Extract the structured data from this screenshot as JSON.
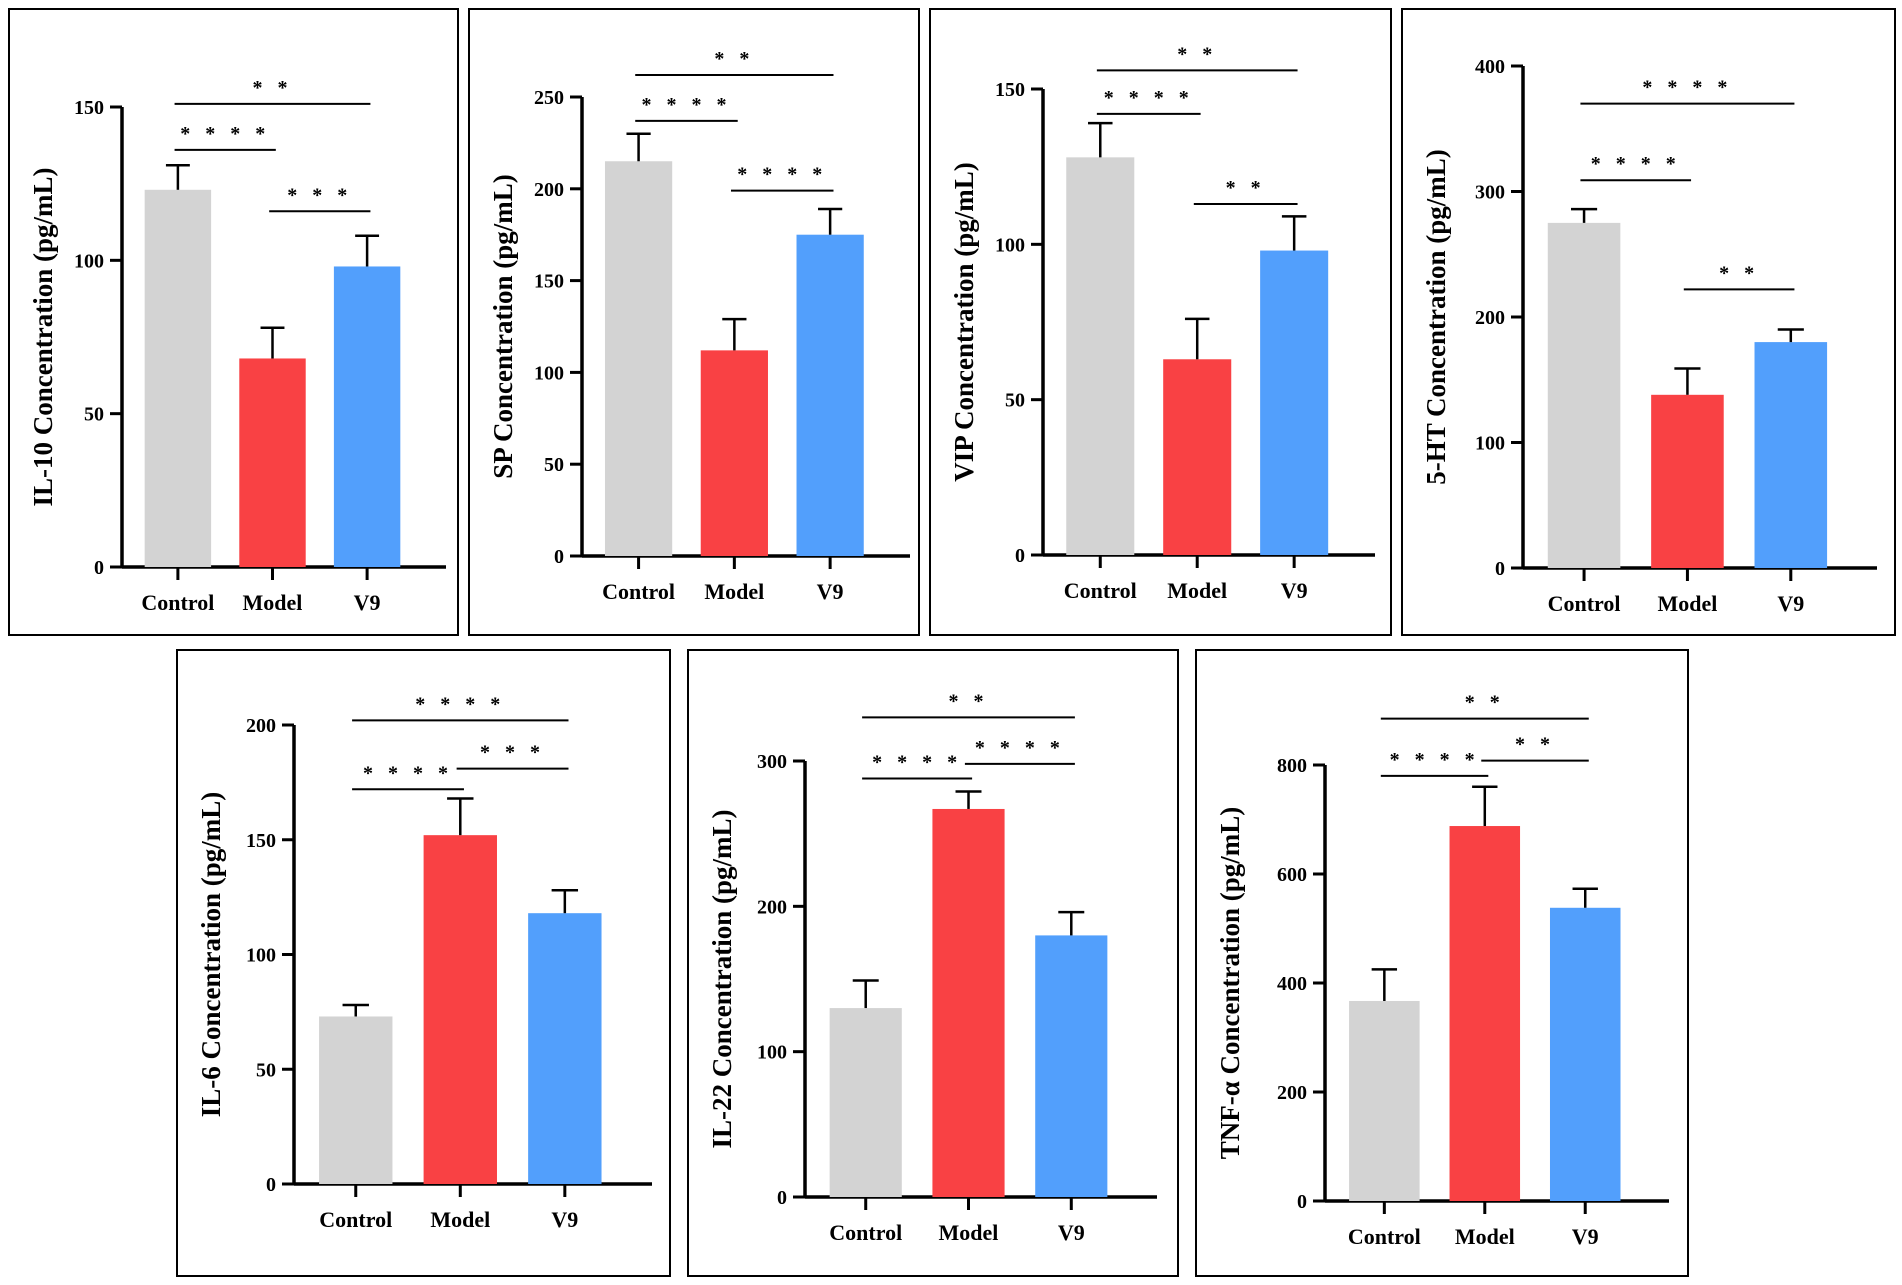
{
  "colors": {
    "Control": "#d3d3d3",
    "Model": "#f94144",
    "V9": "#529ffc",
    "axis": "#000000"
  },
  "chart_data": [
    {
      "type": "bar",
      "title": "",
      "ylabel": "IL-10 Concentration (pg/mL)",
      "categories": [
        "Control",
        "Model",
        "V9"
      ],
      "values": [
        123,
        68,
        98
      ],
      "errors": [
        8,
        10,
        10
      ],
      "ylim": [
        0,
        150
      ],
      "yticks": [
        0,
        50,
        100,
        150
      ],
      "significance": [
        {
          "from": 0,
          "to": 2,
          "label": "**",
          "y": 151
        },
        {
          "from": 0,
          "to": 1,
          "label": "****",
          "y": 136
        },
        {
          "from": 1,
          "to": 2,
          "label": "***",
          "y": 116
        }
      ]
    },
    {
      "type": "bar",
      "title": "",
      "ylabel": "SP Concentration (pg/mL)",
      "categories": [
        "Control",
        "Model",
        "V9"
      ],
      "values": [
        215,
        112,
        175
      ],
      "errors": [
        15,
        17,
        14
      ],
      "ylim": [
        0,
        250
      ],
      "yticks": [
        0,
        50,
        100,
        150,
        200,
        250
      ],
      "significance": [
        {
          "from": 0,
          "to": 2,
          "label": "**",
          "y": 262
        },
        {
          "from": 0,
          "to": 1,
          "label": "****",
          "y": 237
        },
        {
          "from": 1,
          "to": 2,
          "label": "****",
          "y": 199
        }
      ]
    },
    {
      "type": "bar",
      "title": "",
      "ylabel": "VIP Concentration (pg/mL)",
      "categories": [
        "Control",
        "Model",
        "V9"
      ],
      "values": [
        128,
        63,
        98
      ],
      "errors": [
        11,
        13,
        11
      ],
      "ylim": [
        0,
        150
      ],
      "yticks": [
        0,
        50,
        100,
        150
      ],
      "significance": [
        {
          "from": 0,
          "to": 2,
          "label": "**",
          "y": 156
        },
        {
          "from": 0,
          "to": 1,
          "label": "****",
          "y": 142
        },
        {
          "from": 1,
          "to": 2,
          "label": "**",
          "y": 113
        }
      ]
    },
    {
      "type": "bar",
      "title": "",
      "ylabel": "5-HT Concentration (pg/mL)",
      "categories": [
        "Control",
        "Model",
        "V9"
      ],
      "values": [
        275,
        138,
        180
      ],
      "errors": [
        11,
        21,
        10
      ],
      "ylim": [
        0,
        400
      ],
      "yticks": [
        0,
        100,
        200,
        300,
        400
      ],
      "significance": [
        {
          "from": 0,
          "to": 2,
          "label": "****",
          "y": 370
        },
        {
          "from": 0,
          "to": 1,
          "label": "****",
          "y": 309
        },
        {
          "from": 1,
          "to": 2,
          "label": "**",
          "y": 222
        }
      ]
    },
    {
      "type": "bar",
      "title": "",
      "ylabel": "IL-6 Concentration (pg/mL)",
      "categories": [
        "Control",
        "Model",
        "V9"
      ],
      "values": [
        73,
        152,
        118
      ],
      "errors": [
        5,
        16,
        10
      ],
      "ylim": [
        0,
        200
      ],
      "yticks": [
        0,
        50,
        100,
        150,
        200
      ],
      "significance": [
        {
          "from": 0,
          "to": 2,
          "label": "****",
          "y": 202
        },
        {
          "from": 0,
          "to": 1,
          "label": "****",
          "y": 172
        },
        {
          "from": 1,
          "to": 2,
          "label": "***",
          "y": 181
        }
      ]
    },
    {
      "type": "bar",
      "title": "",
      "ylabel": "IL-22 Concentration (pg/mL)",
      "categories": [
        "Control",
        "Model",
        "V9"
      ],
      "values": [
        130,
        267,
        180
      ],
      "errors": [
        19,
        12,
        16
      ],
      "ylim": [
        0,
        300
      ],
      "yticks": [
        0,
        100,
        200,
        300
      ],
      "significance": [
        {
          "from": 0,
          "to": 2,
          "label": "**",
          "y": 330
        },
        {
          "from": 0,
          "to": 1,
          "label": "****",
          "y": 288
        },
        {
          "from": 1,
          "to": 2,
          "label": "****",
          "y": 298
        }
      ]
    },
    {
      "type": "bar",
      "title": "",
      "ylabel": "TNF-α Concentration (pg/mL)",
      "categories": [
        "Control",
        "Model",
        "V9"
      ],
      "values": [
        367,
        688,
        538
      ],
      "errors": [
        58,
        72,
        35
      ],
      "ylim": [
        0,
        800
      ],
      "yticks": [
        0,
        200,
        400,
        600,
        800
      ],
      "significance": [
        {
          "from": 0,
          "to": 2,
          "label": "**",
          "y": 885
        },
        {
          "from": 0,
          "to": 1,
          "label": "****",
          "y": 780
        },
        {
          "from": 1,
          "to": 2,
          "label": "**",
          "y": 808
        }
      ]
    }
  ]
}
